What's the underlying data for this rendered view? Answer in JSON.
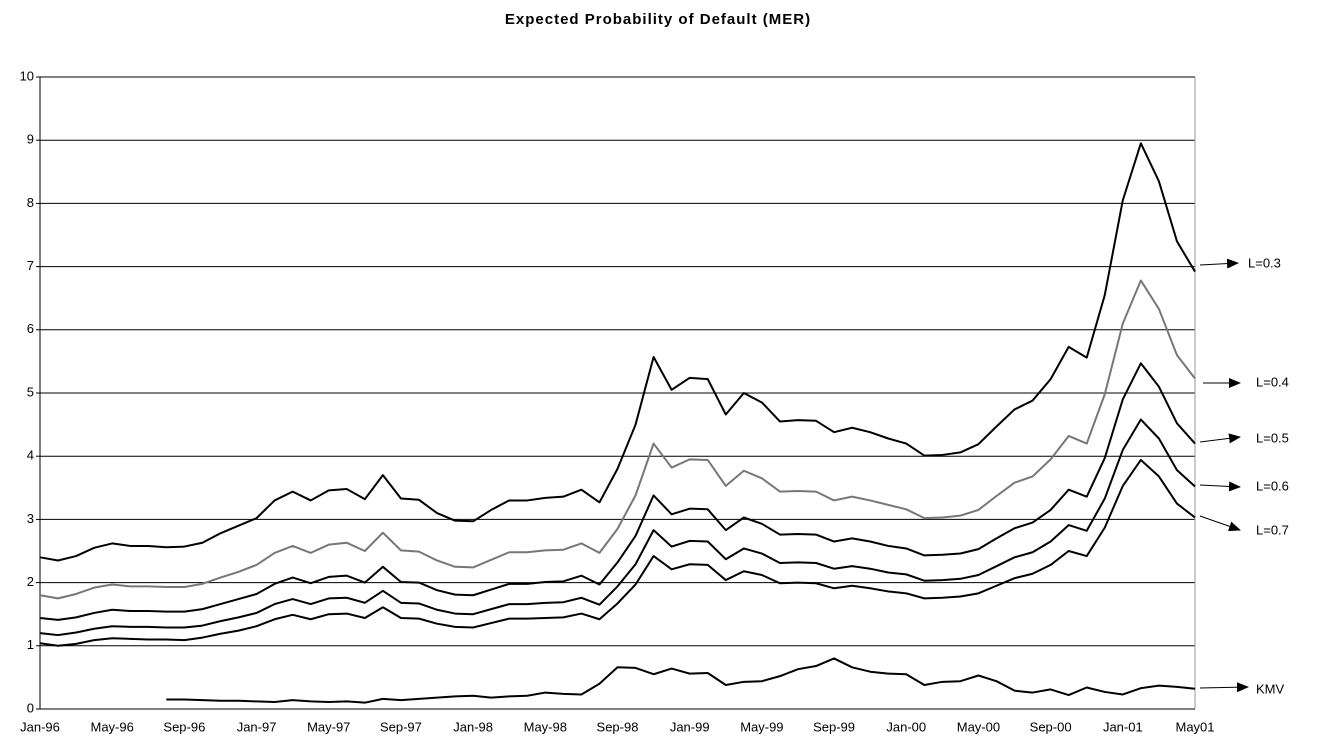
{
  "chart_data": {
    "type": "line",
    "title": "Expected Probability of Default (MER)",
    "categories": [
      "Jan-96",
      null,
      null,
      null,
      "May-96",
      null,
      null,
      null,
      "Sep-96",
      null,
      null,
      null,
      "Jan-97",
      null,
      null,
      null,
      "May-97",
      null,
      null,
      null,
      "Sep-97",
      null,
      null,
      null,
      "Jan-98",
      null,
      null,
      null,
      "May-98",
      null,
      null,
      null,
      "Sep-98",
      null,
      null,
      null,
      "Jan-99",
      null,
      null,
      null,
      "May-99",
      null,
      null,
      null,
      "Sep-99",
      null,
      null,
      null,
      "Jan-00",
      null,
      null,
      null,
      "May-00",
      null,
      null,
      null,
      "Sep-00",
      null,
      null,
      null,
      "Jan-01",
      null,
      null,
      null,
      "May01"
    ],
    "series": [
      {
        "name": "L=0.3",
        "color": "#000000",
        "values": [
          2.4,
          2.35,
          2.42,
          2.55,
          2.62,
          2.58,
          2.58,
          2.56,
          2.57,
          2.63,
          2.78,
          2.9,
          3.02,
          3.3,
          3.44,
          3.3,
          3.46,
          3.48,
          3.32,
          3.7,
          3.33,
          3.31,
          3.1,
          2.98,
          2.97,
          3.15,
          3.3,
          3.3,
          3.34,
          3.36,
          3.47,
          3.27,
          3.8,
          4.5,
          5.57,
          5.05,
          5.24,
          5.22,
          4.66,
          5.0,
          4.85,
          4.55,
          4.57,
          4.56,
          4.38,
          4.45,
          4.38,
          4.28,
          4.2,
          4.01,
          4.02,
          4.06,
          4.19,
          4.47,
          4.74,
          4.88,
          5.22,
          5.73,
          5.56,
          6.55,
          8.05,
          8.95,
          8.35,
          7.4,
          6.92
        ]
      },
      {
        "name": "L=0.4",
        "color": "#777777",
        "values": [
          1.8,
          1.75,
          1.82,
          1.92,
          1.97,
          1.94,
          1.94,
          1.93,
          1.93,
          1.98,
          2.08,
          2.17,
          2.28,
          2.47,
          2.58,
          2.47,
          2.6,
          2.63,
          2.5,
          2.79,
          2.51,
          2.49,
          2.35,
          2.25,
          2.24,
          2.36,
          2.48,
          2.48,
          2.51,
          2.52,
          2.62,
          2.47,
          2.85,
          3.38,
          4.2,
          3.82,
          3.95,
          3.94,
          3.53,
          3.77,
          3.65,
          3.44,
          3.45,
          3.44,
          3.3,
          3.36,
          3.3,
          3.23,
          3.16,
          3.02,
          3.03,
          3.06,
          3.15,
          3.37,
          3.58,
          3.68,
          3.95,
          4.32,
          4.2,
          4.98,
          6.1,
          6.78,
          6.33,
          5.6,
          5.23
        ]
      },
      {
        "name": "L=0.5",
        "color": "#000000",
        "values": [
          1.44,
          1.41,
          1.45,
          1.52,
          1.57,
          1.55,
          1.55,
          1.54,
          1.54,
          1.58,
          1.66,
          1.74,
          1.82,
          1.98,
          2.08,
          1.99,
          2.09,
          2.11,
          2.0,
          2.25,
          2.01,
          2.0,
          1.88,
          1.81,
          1.8,
          1.89,
          1.98,
          1.98,
          2.01,
          2.02,
          2.11,
          1.97,
          2.32,
          2.74,
          3.38,
          3.08,
          3.17,
          3.16,
          2.83,
          3.03,
          2.93,
          2.76,
          2.77,
          2.76,
          2.65,
          2.7,
          2.65,
          2.58,
          2.54,
          2.43,
          2.44,
          2.46,
          2.53,
          2.7,
          2.86,
          2.95,
          3.15,
          3.47,
          3.36,
          3.97,
          4.9,
          5.47,
          5.1,
          4.52,
          4.2
        ]
      },
      {
        "name": "L=0.6",
        "color": "#000000",
        "values": [
          1.2,
          1.17,
          1.21,
          1.27,
          1.31,
          1.3,
          1.3,
          1.29,
          1.29,
          1.32,
          1.39,
          1.45,
          1.52,
          1.66,
          1.74,
          1.66,
          1.75,
          1.76,
          1.68,
          1.87,
          1.68,
          1.67,
          1.57,
          1.51,
          1.5,
          1.58,
          1.66,
          1.66,
          1.68,
          1.69,
          1.76,
          1.65,
          1.94,
          2.29,
          2.83,
          2.57,
          2.66,
          2.65,
          2.37,
          2.54,
          2.46,
          2.31,
          2.32,
          2.31,
          2.22,
          2.26,
          2.22,
          2.16,
          2.13,
          2.03,
          2.04,
          2.06,
          2.12,
          2.26,
          2.4,
          2.48,
          2.65,
          2.91,
          2.82,
          3.33,
          4.1,
          4.58,
          4.28,
          3.78,
          3.52
        ]
      },
      {
        "name": "L=0.7",
        "color": "#000000",
        "values": [
          1.04,
          1.0,
          1.03,
          1.09,
          1.12,
          1.11,
          1.1,
          1.1,
          1.09,
          1.13,
          1.19,
          1.24,
          1.31,
          1.42,
          1.49,
          1.42,
          1.5,
          1.51,
          1.44,
          1.61,
          1.44,
          1.43,
          1.35,
          1.3,
          1.29,
          1.36,
          1.43,
          1.43,
          1.44,
          1.45,
          1.51,
          1.42,
          1.67,
          1.97,
          2.42,
          2.21,
          2.29,
          2.28,
          2.04,
          2.18,
          2.12,
          1.99,
          2.0,
          1.99,
          1.91,
          1.95,
          1.91,
          1.86,
          1.83,
          1.75,
          1.76,
          1.78,
          1.83,
          1.95,
          2.07,
          2.14,
          2.28,
          2.5,
          2.42,
          2.87,
          3.53,
          3.94,
          3.68,
          3.25,
          3.03
        ]
      },
      {
        "name": "KMV",
        "color": "#000000",
        "values": [
          null,
          null,
          null,
          null,
          null,
          null,
          null,
          0.15,
          0.15,
          0.14,
          0.13,
          0.13,
          0.12,
          0.11,
          0.14,
          0.12,
          0.11,
          0.12,
          0.1,
          0.16,
          0.14,
          0.16,
          0.18,
          0.2,
          0.21,
          0.18,
          0.2,
          0.21,
          0.26,
          0.24,
          0.23,
          0.4,
          0.66,
          0.65,
          0.55,
          0.64,
          0.56,
          0.57,
          0.38,
          0.43,
          0.44,
          0.52,
          0.63,
          0.68,
          0.8,
          0.66,
          0.59,
          0.56,
          0.55,
          0.38,
          0.43,
          0.44,
          0.53,
          0.44,
          0.29,
          0.26,
          0.31,
          0.22,
          0.34,
          0.27,
          0.23,
          0.33,
          0.37,
          0.35,
          0.32
        ]
      }
    ],
    "ylim": [
      0,
      10
    ],
    "yticks": [
      0,
      1,
      2,
      3,
      4,
      5,
      6,
      7,
      8,
      9,
      10
    ],
    "grid": true
  }
}
